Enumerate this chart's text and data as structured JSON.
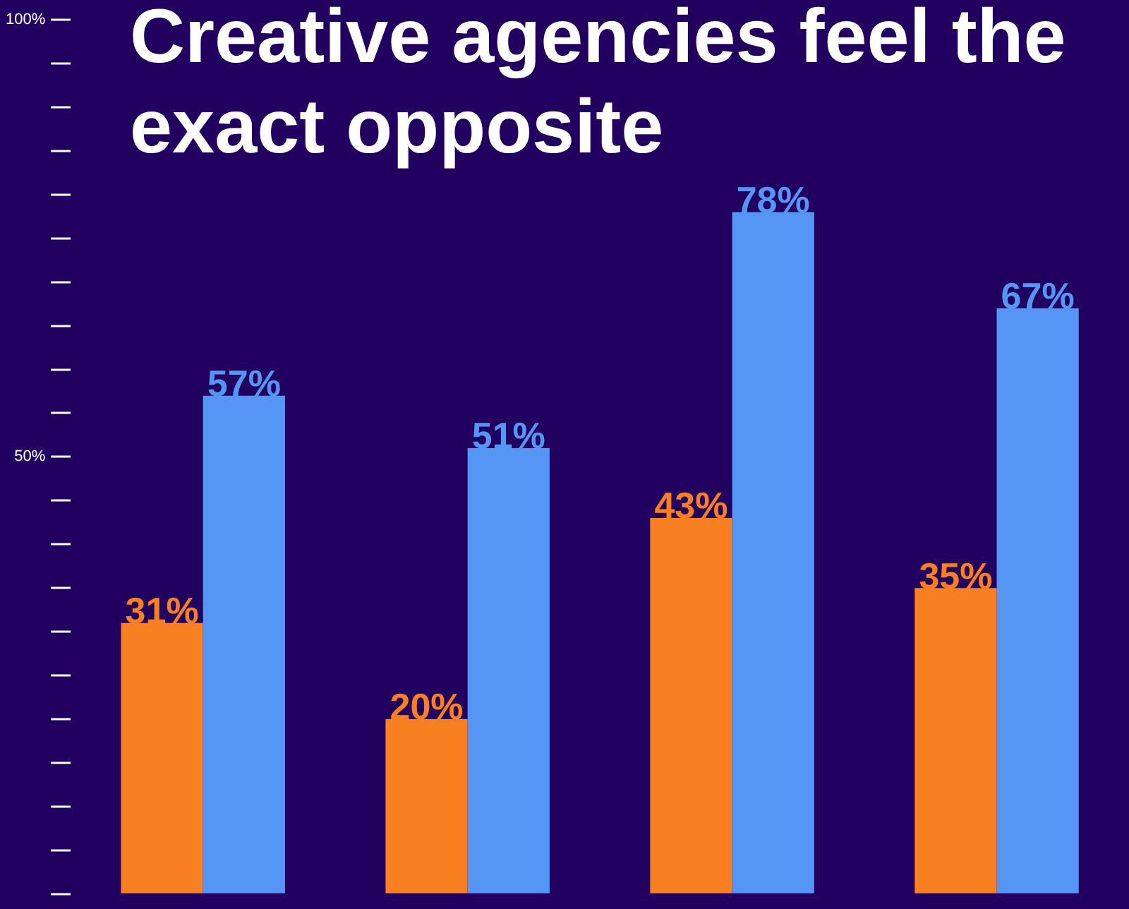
{
  "chart_data": {
    "type": "bar",
    "title": "Creative agencies feel the exact opposite",
    "categories": [
      null,
      null,
      null,
      null
    ],
    "series": [
      {
        "color": "#f98020",
        "values": [
          31,
          20,
          43,
          35
        ],
        "value_labels": [
          "31%",
          "20%",
          "43%",
          "35%"
        ]
      },
      {
        "color": "#5596f5",
        "values": [
          57,
          51,
          78,
          67
        ],
        "value_labels": [
          "57%",
          "51%",
          "78%",
          "67%"
        ]
      }
    ],
    "ylim": [
      0,
      100
    ],
    "yticks": [
      {
        "value": 0,
        "label": null
      },
      {
        "value": 5,
        "label": null
      },
      {
        "value": 10,
        "label": null
      },
      {
        "value": 15,
        "label": null
      },
      {
        "value": 20,
        "label": null
      },
      {
        "value": 25,
        "label": null
      },
      {
        "value": 30,
        "label": null
      },
      {
        "value": 35,
        "label": null
      },
      {
        "value": 40,
        "label": null
      },
      {
        "value": 45,
        "label": null
      },
      {
        "value": 50,
        "label": "50%"
      },
      {
        "value": 55,
        "label": null
      },
      {
        "value": 60,
        "label": null
      },
      {
        "value": 65,
        "label": null
      },
      {
        "value": 70,
        "label": null
      },
      {
        "value": 75,
        "label": null
      },
      {
        "value": 80,
        "label": null
      },
      {
        "value": 85,
        "label": null
      },
      {
        "value": 90,
        "label": null
      },
      {
        "value": 95,
        "label": null
      },
      {
        "value": 100,
        "label": "100%"
      }
    ],
    "tick_labels": "y",
    "grid": false,
    "legend": false
  }
}
